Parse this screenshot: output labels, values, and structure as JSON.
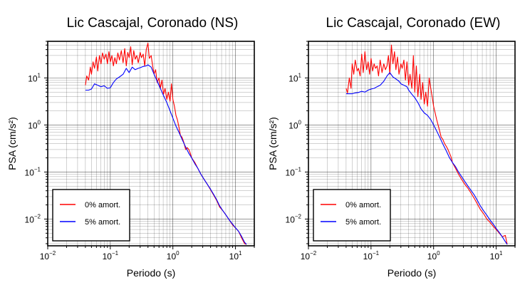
{
  "chart_data": [
    {
      "type": "line",
      "title": "Lic Cascajal, Coronado (NS)",
      "xlabel": "Periodo (s)",
      "ylabel": "PSA (cm/s²)",
      "xscale": "log",
      "yscale": "log",
      "xlim": [
        0.01,
        20
      ],
      "ylim": [
        0.0027,
        60
      ],
      "xticks": [
        {
          "base": "10",
          "exp": "−2"
        },
        {
          "base": "10",
          "exp": "−1"
        },
        {
          "base": "10",
          "exp": "0"
        },
        {
          "base": "10",
          "exp": "1"
        }
      ],
      "yticks": [
        {
          "base": "10",
          "exp": "−2"
        },
        {
          "base": "10",
          "exp": "−1"
        },
        {
          "base": "10",
          "exp": "0"
        },
        {
          "base": "10",
          "exp": "1"
        }
      ],
      "grid": true,
      "legend_position": "bottom-left",
      "series": [
        {
          "name": "0% amort.",
          "color": "#ff0000",
          "x": [
            0.04,
            0.042,
            0.045,
            0.048,
            0.05,
            0.053,
            0.056,
            0.06,
            0.063,
            0.067,
            0.071,
            0.075,
            0.08,
            0.085,
            0.09,
            0.095,
            0.1,
            0.106,
            0.112,
            0.118,
            0.125,
            0.132,
            0.14,
            0.15,
            0.16,
            0.17,
            0.18,
            0.19,
            0.2,
            0.212,
            0.224,
            0.237,
            0.25,
            0.265,
            0.28,
            0.3,
            0.315,
            0.335,
            0.355,
            0.375,
            0.4,
            0.42,
            0.45,
            0.475,
            0.5,
            0.53,
            0.56,
            0.6,
            0.63,
            0.67,
            0.71,
            0.75,
            0.8,
            0.85,
            0.9,
            0.95,
            1.0,
            1.06,
            1.12,
            1.18,
            1.25,
            1.32,
            1.4,
            1.5,
            1.6,
            1.7,
            1.8,
            1.9,
            2.0,
            2.24,
            2.5,
            2.8,
            3.15,
            3.55,
            4.0,
            4.5,
            5.0,
            5.6,
            6.3,
            7.1,
            8.0,
            9.0,
            10.0,
            11.2,
            12.5,
            14.0,
            15.0
          ],
          "y": [
            7,
            11,
            9,
            17,
            12,
            22,
            16,
            28,
            14,
            30,
            20,
            34,
            25,
            32,
            20,
            36,
            22,
            30,
            18,
            27,
            20,
            34,
            24,
            38,
            21,
            42,
            18,
            35,
            27,
            46,
            19,
            38,
            25,
            30,
            21,
            35,
            27,
            32,
            18,
            40,
            55,
            26,
            30,
            18,
            12,
            15,
            8,
            10,
            6,
            9,
            4.5,
            6,
            3.5,
            5,
            3.2,
            7.5,
            3.5,
            2.5,
            1.6,
            1.3,
            0.9,
            0.6,
            0.55,
            0.42,
            0.3,
            0.33,
            0.3,
            0.25,
            0.2,
            0.16,
            0.12,
            0.09,
            0.07,
            0.055,
            0.042,
            0.032,
            0.025,
            0.018,
            0.015,
            0.012,
            0.0095,
            0.0075,
            0.0065,
            0.0055,
            0.004,
            0.003,
            0.0029
          ]
        },
        {
          "name": "5% amort.",
          "color": "#0000ff",
          "x": [
            0.04,
            0.045,
            0.05,
            0.056,
            0.063,
            0.071,
            0.08,
            0.09,
            0.1,
            0.112,
            0.125,
            0.14,
            0.16,
            0.18,
            0.2,
            0.224,
            0.25,
            0.28,
            0.3,
            0.335,
            0.375,
            0.4,
            0.45,
            0.5,
            0.56,
            0.63,
            0.71,
            0.8,
            0.9,
            1.0,
            1.12,
            1.25,
            1.4,
            1.6,
            1.8,
            2.0,
            2.24,
            2.5,
            2.8,
            3.15,
            3.55,
            4.0,
            4.5,
            5.0,
            5.6,
            6.3,
            7.1,
            8.0,
            9.0,
            10.0,
            11.2,
            12.5,
            14.0,
            15.0
          ],
          "y": [
            5.5,
            5.5,
            5.8,
            7.5,
            7.0,
            6.5,
            6.8,
            6.0,
            6.2,
            8.0,
            9.5,
            10.5,
            12.0,
            16.0,
            13.0,
            17.0,
            15.0,
            16.0,
            16.5,
            17.5,
            18.0,
            19.0,
            17.0,
            12.0,
            8.5,
            6.0,
            4.2,
            3.0,
            2.0,
            1.4,
            0.95,
            0.7,
            0.5,
            0.34,
            0.25,
            0.2,
            0.15,
            0.12,
            0.09,
            0.07,
            0.055,
            0.043,
            0.033,
            0.026,
            0.019,
            0.015,
            0.012,
            0.0095,
            0.0078,
            0.0065,
            0.0055,
            0.0043,
            0.0032,
            0.0029
          ]
        }
      ]
    },
    {
      "type": "line",
      "title": "Lic Cascajal, Coronado (EW)",
      "xlabel": "Periodo (s)",
      "ylabel": "PSA (cm/s²)",
      "xscale": "log",
      "yscale": "log",
      "xlim": [
        0.01,
        20
      ],
      "ylim": [
        0.0027,
        60
      ],
      "xticks": [
        {
          "base": "10",
          "exp": "−2"
        },
        {
          "base": "10",
          "exp": "−1"
        },
        {
          "base": "10",
          "exp": "0"
        },
        {
          "base": "10",
          "exp": "1"
        }
      ],
      "yticks": [
        {
          "base": "10",
          "exp": "−2"
        },
        {
          "base": "10",
          "exp": "−1"
        },
        {
          "base": "10",
          "exp": "0"
        },
        {
          "base": "10",
          "exp": "1"
        }
      ],
      "grid": true,
      "legend_position": "bottom-left",
      "series": [
        {
          "name": "0% amort.",
          "color": "#ff0000",
          "x": [
            0.04,
            0.042,
            0.045,
            0.048,
            0.05,
            0.053,
            0.056,
            0.06,
            0.063,
            0.067,
            0.071,
            0.075,
            0.08,
            0.085,
            0.09,
            0.095,
            0.1,
            0.106,
            0.112,
            0.118,
            0.125,
            0.132,
            0.14,
            0.15,
            0.16,
            0.17,
            0.18,
            0.19,
            0.2,
            0.212,
            0.224,
            0.237,
            0.25,
            0.265,
            0.28,
            0.3,
            0.315,
            0.335,
            0.355,
            0.375,
            0.4,
            0.42,
            0.45,
            0.475,
            0.5,
            0.53,
            0.56,
            0.6,
            0.63,
            0.67,
            0.71,
            0.75,
            0.8,
            0.85,
            0.9,
            0.95,
            1.0,
            1.06,
            1.12,
            1.18,
            1.25,
            1.32,
            1.4,
            1.5,
            1.6,
            1.7,
            1.8,
            1.9,
            2.0,
            2.24,
            2.5,
            2.8,
            3.15,
            3.55,
            4.0,
            4.5,
            5.0,
            5.6,
            6.3,
            7.1,
            8.0,
            9.0,
            10.0,
            11.2,
            12.5,
            14.0,
            15.0
          ],
          "y": [
            6,
            4.8,
            10,
            6,
            20,
            12,
            24,
            14,
            16,
            11,
            32,
            13,
            36,
            15,
            22,
            12,
            26,
            14,
            20,
            16,
            18,
            11,
            24,
            13,
            20,
            15,
            18,
            30,
            12,
            50,
            20,
            36,
            15,
            28,
            12,
            20,
            16,
            24,
            9,
            22,
            7,
            12,
            6,
            30,
            5,
            18,
            4,
            12,
            3.5,
            8,
            2.8,
            5,
            2.5,
            10,
            6,
            4,
            2.5,
            1.8,
            1.3,
            1.0,
            0.75,
            0.55,
            0.5,
            0.4,
            0.35,
            0.3,
            0.25,
            0.21,
            0.16,
            0.12,
            0.09,
            0.07,
            0.055,
            0.045,
            0.035,
            0.027,
            0.021,
            0.016,
            0.013,
            0.01,
            0.0085,
            0.007,
            0.006,
            0.005,
            0.0042,
            0.0045,
            0.0029
          ]
        },
        {
          "name": "5% amort.",
          "color": "#0000ff",
          "x": [
            0.04,
            0.045,
            0.05,
            0.056,
            0.063,
            0.071,
            0.08,
            0.09,
            0.1,
            0.112,
            0.125,
            0.14,
            0.16,
            0.18,
            0.2,
            0.224,
            0.25,
            0.28,
            0.3,
            0.335,
            0.375,
            0.4,
            0.45,
            0.5,
            0.56,
            0.63,
            0.71,
            0.8,
            0.9,
            1.0,
            1.12,
            1.25,
            1.4,
            1.6,
            1.8,
            2.0,
            2.24,
            2.5,
            2.8,
            3.15,
            3.55,
            4.0,
            4.5,
            5.0,
            5.6,
            6.3,
            7.1,
            8.0,
            9.0,
            10.0,
            11.2,
            12.5,
            14.0,
            15.0
          ],
          "y": [
            4.6,
            4.6,
            4.6,
            4.8,
            4.9,
            5.2,
            5.0,
            5.5,
            5.8,
            6.0,
            6.5,
            7.0,
            8.5,
            11.0,
            13.0,
            10.5,
            9.5,
            8.5,
            7.5,
            7.0,
            6.5,
            5.5,
            4.5,
            3.8,
            3.0,
            2.2,
            1.8,
            1.6,
            1.3,
            1.0,
            0.75,
            0.55,
            0.4,
            0.28,
            0.2,
            0.16,
            0.13,
            0.1,
            0.08,
            0.063,
            0.05,
            0.04,
            0.032,
            0.025,
            0.019,
            0.015,
            0.012,
            0.0095,
            0.0078,
            0.0063,
            0.0052,
            0.0042,
            0.0033,
            0.0029
          ]
        }
      ]
    }
  ]
}
